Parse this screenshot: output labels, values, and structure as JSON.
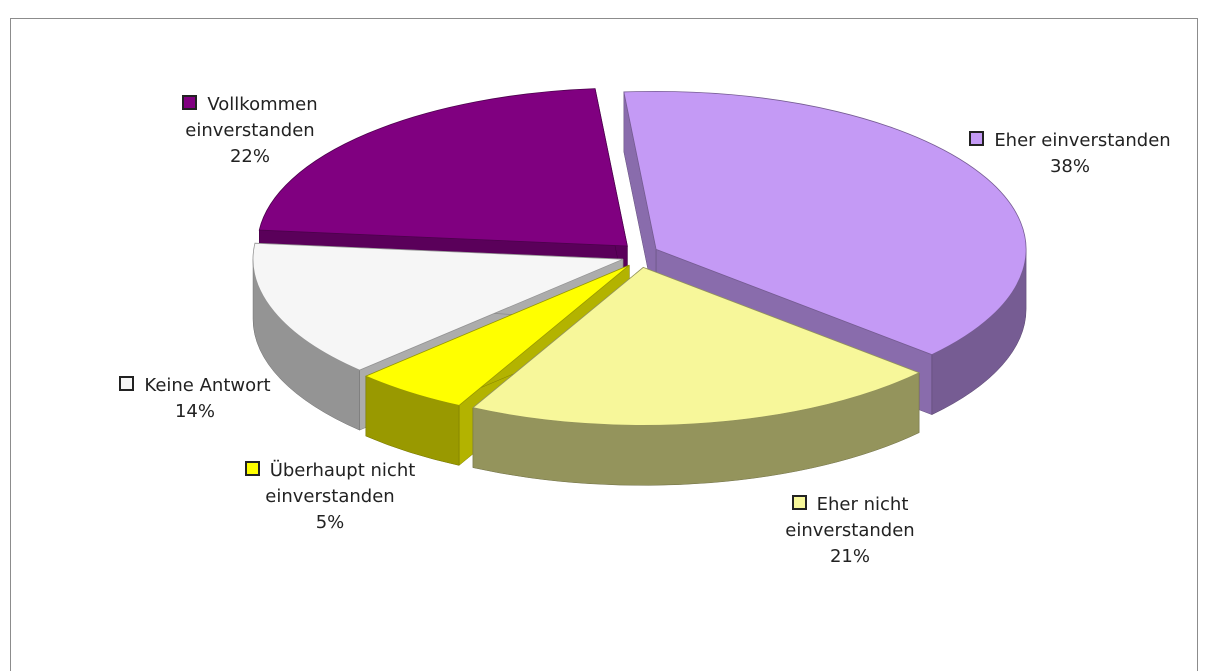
{
  "chart_data": {
    "type": "pie3d",
    "categories": [
      "Eher einverstanden",
      "Eher nicht einverstanden",
      "Überhaupt nicht einverstanden",
      "Keine Antwort",
      "Vollkommen einverstanden"
    ],
    "values": [
      38,
      21,
      5,
      14,
      22
    ],
    "value_labels": [
      "38%",
      "21%",
      "5%",
      "14%",
      "22%"
    ],
    "colors": [
      "#c49af5",
      "#f7f79a",
      "#ffff00",
      "#f6f6f6",
      "#800080"
    ]
  }
}
